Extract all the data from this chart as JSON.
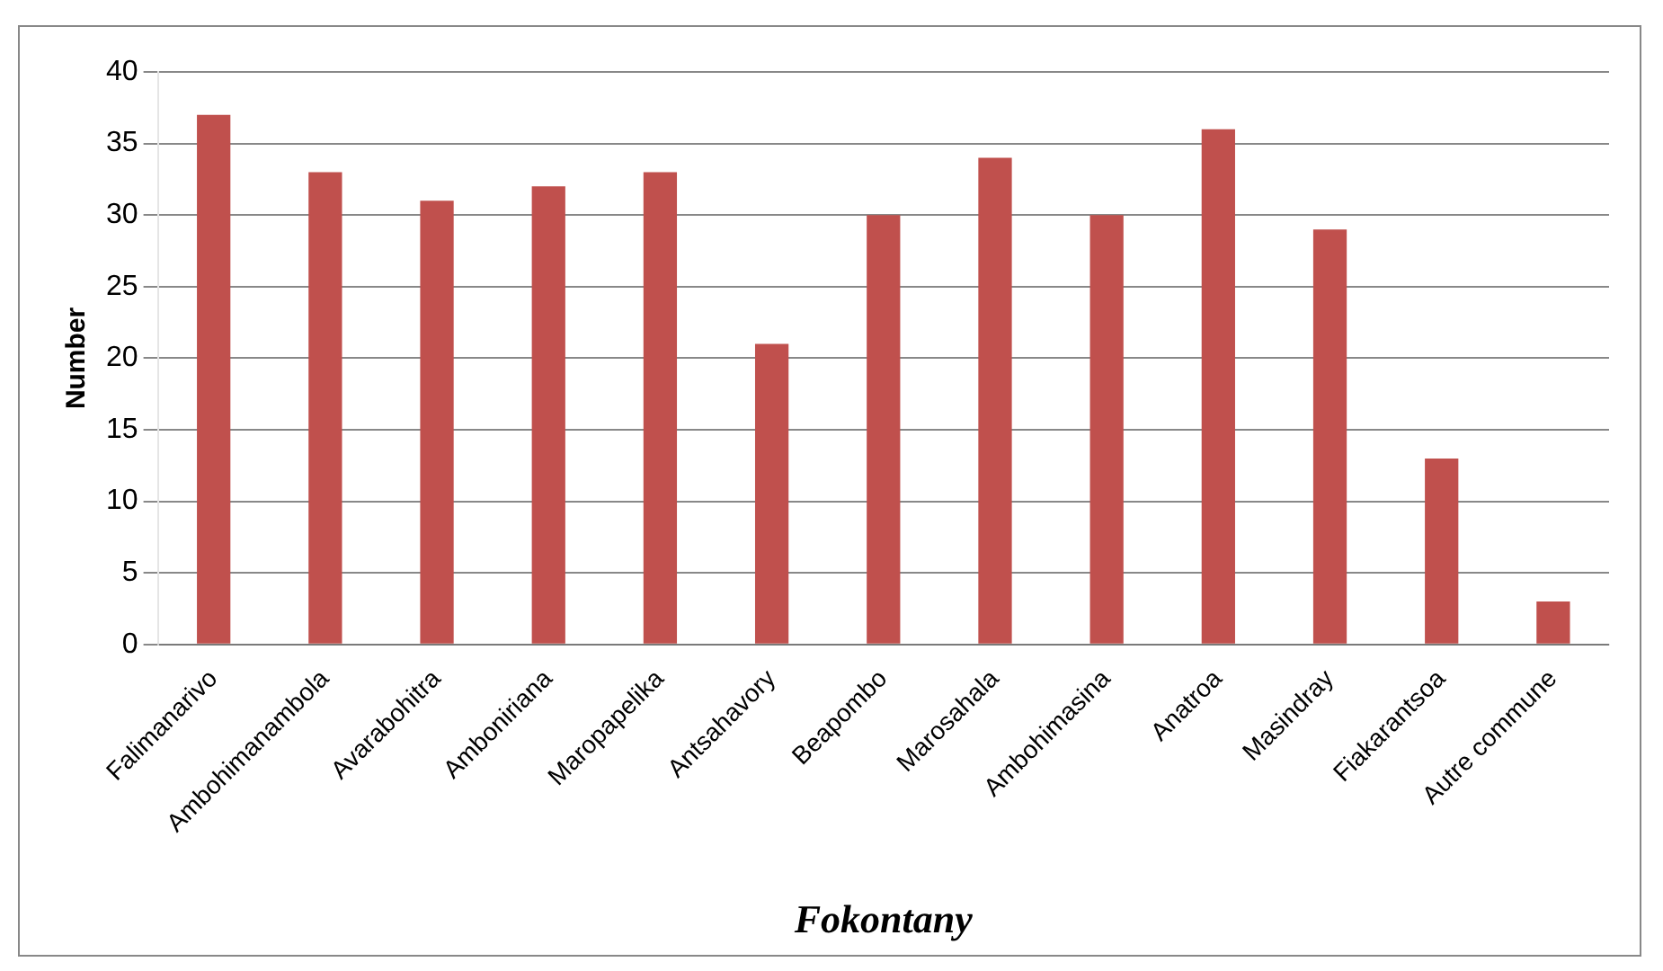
{
  "chart_data": {
    "type": "bar",
    "xlabel": "Fokontany",
    "ylabel": "Number",
    "categories": [
      "Falimanarivo",
      "Ambohimanambola",
      "Avarabohitra",
      "Amboniriana",
      "Maropapelika",
      "Antsahavory",
      "Beapombo",
      "Marosahala",
      "Ambohimasina",
      "Anatroa",
      "Masindray",
      "Fiakarantsoa",
      "Autre commune"
    ],
    "values": [
      37,
      33,
      31,
      32,
      33,
      21,
      30,
      34,
      30,
      36,
      29,
      13,
      3
    ],
    "color": "#c0504d",
    "ylim": [
      0,
      40
    ],
    "yticks": [
      0,
      5,
      10,
      15,
      20,
      25,
      30,
      35,
      40
    ],
    "grid": "y",
    "legend": false
  }
}
